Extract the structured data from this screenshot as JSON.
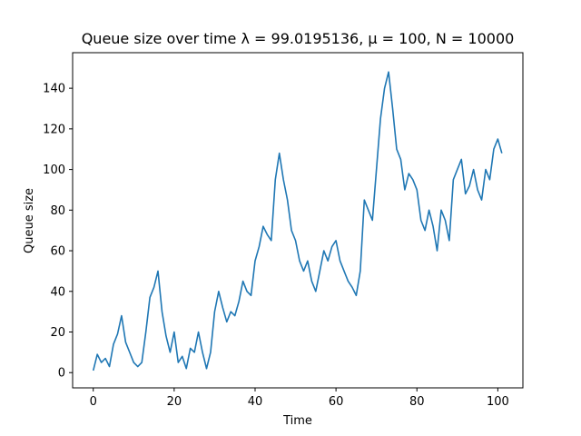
{
  "chart_data": {
    "type": "line",
    "title": "Queue size over time λ = 99.0195136, μ = 100, N = 10000",
    "xlabel": "Time",
    "ylabel": "Queue size",
    "xlim": [
      -5.1,
      106.2
    ],
    "ylim": [
      -7.5,
      157.5
    ],
    "xticks": [
      0,
      20,
      40,
      60,
      80,
      100
    ],
    "yticks": [
      0,
      20,
      40,
      60,
      80,
      100,
      120,
      140
    ],
    "grid": false,
    "legend": "none",
    "series": [
      {
        "color": "#1f77b4",
        "x": [
          0,
          1,
          2,
          3,
          4,
          5,
          6,
          7,
          8,
          9,
          10,
          11,
          12,
          13,
          14,
          15,
          16,
          17,
          18,
          19,
          20,
          21,
          22,
          23,
          24,
          25,
          26,
          27,
          28,
          29,
          30,
          31,
          32,
          33,
          34,
          35,
          36,
          37,
          38,
          39,
          40,
          41,
          42,
          43,
          44,
          45,
          46,
          47,
          48,
          49,
          50,
          51,
          52,
          53,
          54,
          55,
          56,
          57,
          58,
          59,
          60,
          61,
          62,
          63,
          64,
          65,
          66,
          67,
          68,
          69,
          70,
          71,
          72,
          73,
          74,
          75,
          76,
          77,
          78,
          79,
          80,
          81,
          82,
          83,
          84,
          85,
          86,
          87,
          88,
          89,
          90,
          91,
          92,
          93,
          94,
          95,
          96,
          97,
          98,
          99,
          100,
          101
        ],
        "y": [
          1,
          9,
          5,
          7,
          3,
          14,
          19,
          28,
          15,
          10,
          5,
          3,
          5,
          20,
          37,
          42,
          50,
          30,
          18,
          10,
          20,
          5,
          8,
          2,
          12,
          10,
          20,
          10,
          2,
          10,
          30,
          40,
          32,
          25,
          30,
          28,
          35,
          45,
          40,
          38,
          55,
          62,
          72,
          68,
          65,
          95,
          108,
          95,
          85,
          70,
          65,
          55,
          50,
          55,
          45,
          40,
          50,
          60,
          55,
          62,
          65,
          55,
          50,
          45,
          42,
          38,
          50,
          85,
          80,
          75,
          100,
          125,
          140,
          148,
          130,
          110,
          105,
          90,
          98,
          95,
          90,
          75,
          70,
          80,
          72,
          60,
          80,
          75,
          65,
          95,
          100,
          105,
          88,
          92,
          100,
          90,
          85,
          100,
          95,
          110,
          115,
          108
        ]
      }
    ]
  }
}
